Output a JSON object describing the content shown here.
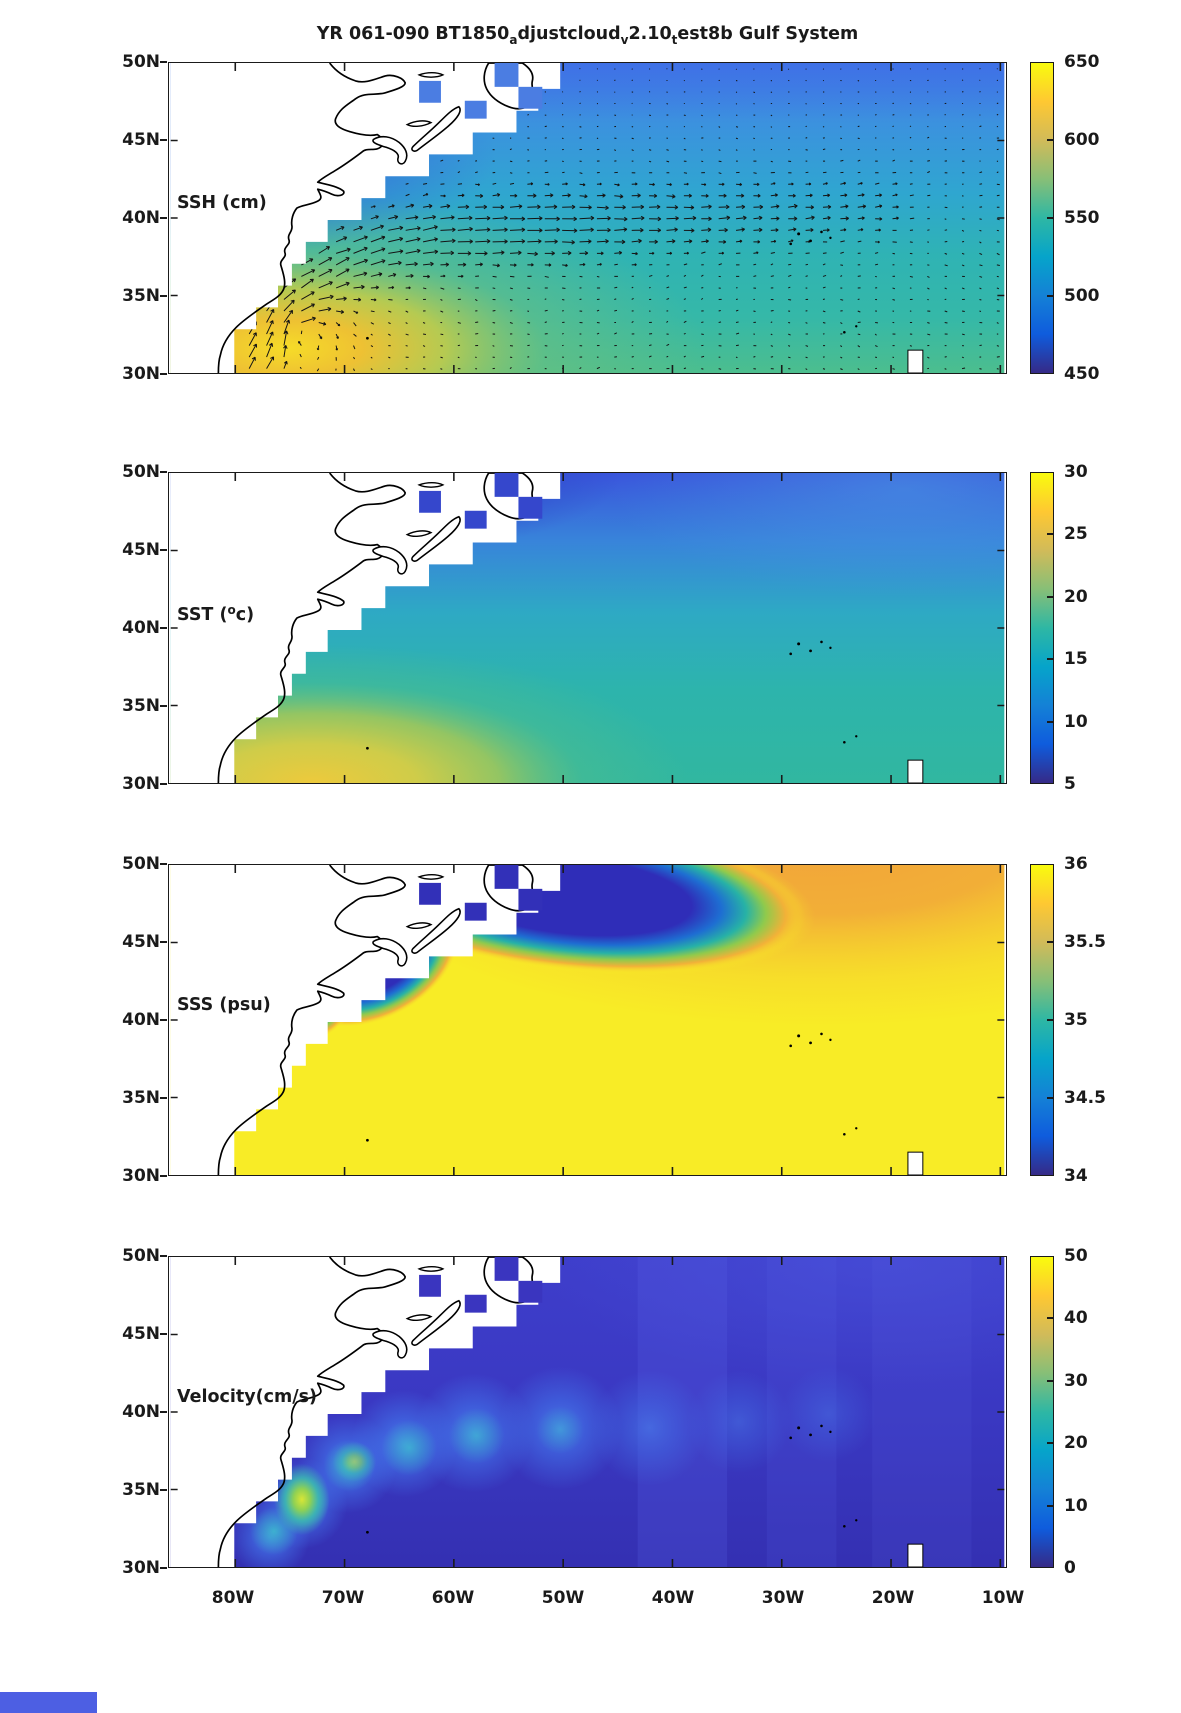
{
  "title": {
    "segments": [
      {
        "t": "YR 061-090 BT1850"
      },
      {
        "t": "a",
        "sub": true
      },
      {
        "t": "djustcloud"
      },
      {
        "t": "v",
        "sub": true
      },
      {
        "t": "2.10"
      },
      {
        "t": "t",
        "sub": true
      },
      {
        "t": "est8b Gulf System"
      }
    ],
    "plain": "YR 061-090 BT1850_adjustcloud_v2.10_test8b Gulf System"
  },
  "axes": {
    "lat_ticks": [
      "50N",
      "45N",
      "40N",
      "35N",
      "30N"
    ],
    "lon_ticks": [
      "80W",
      "70W",
      "60W",
      "50W",
      "40W",
      "30W",
      "20W",
      "10W"
    ]
  },
  "colormap": {
    "name": "parula",
    "stops": [
      "#352a87",
      "#0f5cdd",
      "#1481d6",
      "#06a4ca",
      "#2eb7a4",
      "#87bf77",
      "#d1bb59",
      "#fec832",
      "#f9fb0e"
    ]
  },
  "chart_data": [
    {
      "type": "heatmap",
      "variable": "SSH",
      "label_segments": [
        {
          "t": "SSH (cm)"
        }
      ],
      "units": "cm",
      "range": [
        450,
        650
      ],
      "colorbar_ticks": [
        {
          "v": 650,
          "label": "650"
        },
        {
          "v": 600,
          "label": "600"
        },
        {
          "v": 550,
          "label": "550"
        },
        {
          "v": 500,
          "label": "500"
        },
        {
          "v": 450,
          "label": "450"
        }
      ],
      "region": "North Atlantic 30N-50N, ~85W-8W",
      "features": [
        "anticyclonic high ~620-650 cm centered near 76W 31N",
        "low SSH ~450-480 cm along the northwest coastal margin",
        "broad 510-545 cm cyan-teal interior east of 60W"
      ],
      "overlay": "surface velocity quiver arrows",
      "mask_cell_color": "#4b7de2",
      "quiver": {
        "grid_dx": 17.5,
        "grid_dy": 11.6,
        "jet_path": [
          [
            92,
            294
          ],
          [
            112,
            260
          ],
          [
            136,
            228
          ],
          [
            168,
            204
          ],
          [
            210,
            186
          ],
          [
            262,
            174
          ],
          [
            330,
            167
          ],
          [
            410,
            162
          ],
          [
            500,
            157
          ],
          [
            600,
            152
          ],
          [
            710,
            148
          ]
        ],
        "jet_sigma": 23,
        "jet_amp": 15,
        "eddy": {
          "center": [
            128,
            266
          ],
          "radius": 36,
          "strength": 9
        },
        "background": [
          2.1,
          0.55
        ],
        "max_len": 15
      }
    },
    {
      "type": "heatmap",
      "variable": "SST",
      "label_segments": [
        {
          "t": "SST ("
        },
        {
          "t": "o",
          "sup": true
        },
        {
          "t": "c)"
        }
      ],
      "units": "degC",
      "range": [
        5,
        30
      ],
      "colorbar_ticks": [
        {
          "v": 30,
          "label": "30"
        },
        {
          "v": 25,
          "label": "25"
        },
        {
          "v": 20,
          "label": "20"
        },
        {
          "v": 15,
          "label": "15"
        },
        {
          "v": 10,
          "label": "10"
        },
        {
          "v": 5,
          "label": "5"
        }
      ],
      "region": "North Atlantic 30N-50N, ~85W-8W",
      "features": [
        "warm 24-27 degC band along the southwest coast",
        "cold 5-9 degC pool near Newfoundland",
        "14-18 degC teal interior across the central and eastern basin"
      ],
      "overlay": null,
      "mask_cell_color": "#3547cc"
    },
    {
      "type": "heatmap",
      "variable": "SSS",
      "label_segments": [
        {
          "t": "SSS (psu)"
        }
      ],
      "units": "psu",
      "range": [
        34,
        36
      ],
      "colorbar_ticks": [
        {
          "v": 36,
          "label": "36"
        },
        {
          "v": 35.5,
          "label": "35.5"
        },
        {
          "v": 35,
          "label": "35"
        },
        {
          "v": 34.5,
          "label": "34.5"
        },
        {
          "v": 34,
          "label": "34"
        }
      ],
      "region": "North Atlantic 30N-50N, ~85W-8W",
      "features": [
        "fresh <34.3 psu subpolar water northwest of the Gulf Stream front",
        "salty ~35.9-36 psu subtropical gyre filling most of the basin",
        "sharp salinity front with 34.8-35.7 psu transition band arcing northeast"
      ],
      "overlay": null,
      "mask_cell_color": "#3230b8"
    },
    {
      "type": "heatmap",
      "variable": "Velocity",
      "label_segments": [
        {
          "t": "Velocity(cm/s)"
        }
      ],
      "units": "cm/s",
      "range": [
        0,
        50
      ],
      "colorbar_ticks": [
        {
          "v": 50,
          "label": "50"
        },
        {
          "v": 40,
          "label": "40"
        },
        {
          "v": 30,
          "label": "30"
        },
        {
          "v": 20,
          "label": "20"
        },
        {
          "v": 10,
          "label": "10"
        },
        {
          "v": 0,
          "label": "0"
        }
      ],
      "region": "North Atlantic 30N-50N, ~85W-8W",
      "features": [
        "jet core ~40-50 cm/s near 76W 33N off the southeast US coast",
        "Gulf Stream band ~15-30 cm/s extending east-northeast to ~45W",
        "quiescent <10 cm/s dark-blue interior elsewhere"
      ],
      "overlay": null,
      "mask_cell_color": "#3a35bf"
    }
  ],
  "decor": {
    "bottom_strip_color": "#4d5fe3",
    "land_color": "#ffffff",
    "coast_color": "#000000"
  }
}
